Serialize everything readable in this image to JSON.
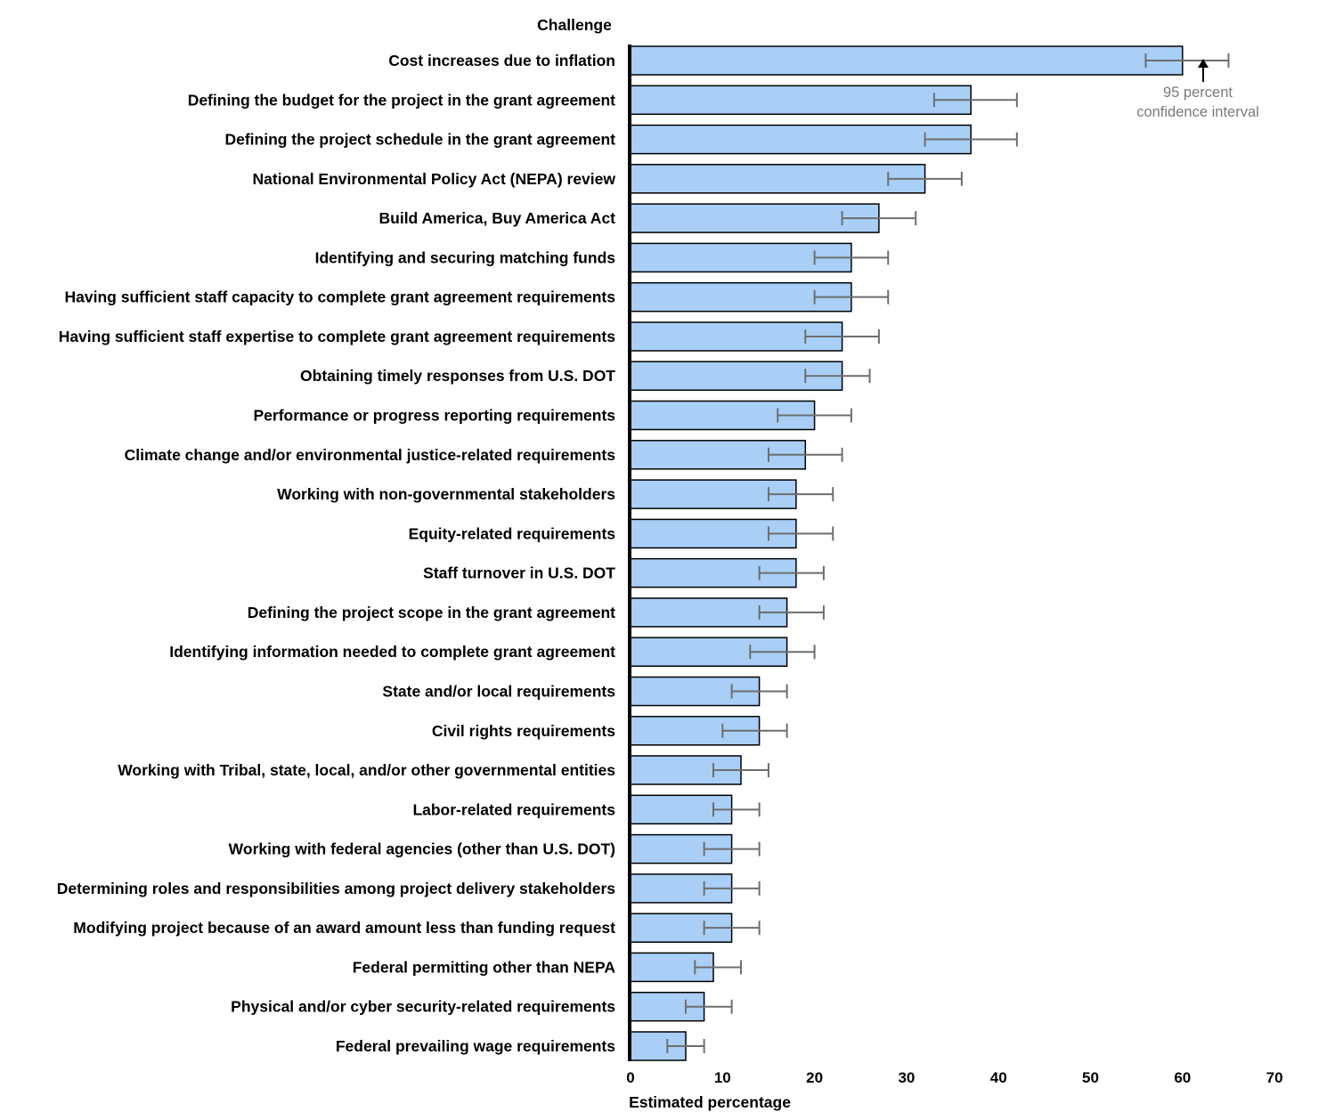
{
  "chart_data": {
    "type": "bar",
    "orientation": "horizontal",
    "title": "",
    "ylabel": "Challenge",
    "xlabel": "Estimated percentage",
    "xlim": [
      0,
      70
    ],
    "xticks": [
      "0",
      "10",
      "20",
      "30",
      "40",
      "50",
      "60",
      "70"
    ],
    "grid": false,
    "colors": {
      "bar_fill": "#a9cff7",
      "bar_stroke": "#000000",
      "error_bar": "#6e6e6e",
      "annotation": "#7a7a7a"
    },
    "series": [
      {
        "name": "Estimated percentage",
        "items": [
          {
            "label": "Cost increases due to inflation",
            "value": 60,
            "ci": [
              56,
              65
            ]
          },
          {
            "label": "Defining the budget for the project in the grant agreement",
            "value": 37,
            "ci": [
              33,
              42
            ]
          },
          {
            "label": "Defining the project schedule in the grant agreement",
            "value": 37,
            "ci": [
              32,
              42
            ]
          },
          {
            "label": "National Environmental Policy Act (NEPA) review",
            "value": 32,
            "ci": [
              28,
              36
            ]
          },
          {
            "label": "Build America, Buy America Act",
            "value": 27,
            "ci": [
              23,
              31
            ]
          },
          {
            "label": "Identifying and securing matching funds",
            "value": 24,
            "ci": [
              20,
              28
            ]
          },
          {
            "label": "Having sufficient staff capacity to complete grant agreement requirements",
            "value": 24,
            "ci": [
              20,
              28
            ]
          },
          {
            "label": "Having sufficient staff expertise to complete grant agreement requirements",
            "value": 23,
            "ci": [
              19,
              27
            ]
          },
          {
            "label": "Obtaining timely responses from U.S. DOT",
            "value": 23,
            "ci": [
              19,
              26
            ]
          },
          {
            "label": "Performance or progress reporting requirements",
            "value": 20,
            "ci": [
              16,
              24
            ]
          },
          {
            "label": "Climate change and/or environmental justice-related requirements",
            "value": 19,
            "ci": [
              15,
              23
            ]
          },
          {
            "label": "Working with non-governmental stakeholders",
            "value": 18,
            "ci": [
              15,
              22
            ]
          },
          {
            "label": "Equity-related requirements",
            "value": 18,
            "ci": [
              15,
              22
            ]
          },
          {
            "label": "Staff turnover in U.S. DOT",
            "value": 18,
            "ci": [
              14,
              21
            ]
          },
          {
            "label": "Defining the project scope in the grant agreement",
            "value": 17,
            "ci": [
              14,
              21
            ]
          },
          {
            "label": "Identifying information needed to complete grant agreement",
            "value": 17,
            "ci": [
              13,
              20
            ]
          },
          {
            "label": "State and/or local requirements",
            "value": 14,
            "ci": [
              11,
              17
            ]
          },
          {
            "label": "Civil rights requirements",
            "value": 14,
            "ci": [
              10,
              17
            ]
          },
          {
            "label": "Working with Tribal, state, local, and/or other governmental entities",
            "value": 12,
            "ci": [
              9,
              15
            ]
          },
          {
            "label": "Labor-related requirements",
            "value": 11,
            "ci": [
              9,
              14
            ]
          },
          {
            "label": "Working with federal agencies (other than U.S. DOT)",
            "value": 11,
            "ci": [
              8,
              14
            ]
          },
          {
            "label": "Determining roles and responsibilities among project delivery stakeholders",
            "value": 11,
            "ci": [
              8,
              14
            ]
          },
          {
            "label": "Modifying project because of an award amount less than funding request",
            "value": 11,
            "ci": [
              8,
              14
            ]
          },
          {
            "label": "Federal permitting other than NEPA",
            "value": 9,
            "ci": [
              7,
              12
            ]
          },
          {
            "label": "Physical and/or cyber security-related requirements",
            "value": 8,
            "ci": [
              6,
              11
            ]
          },
          {
            "label": "Federal prevailing wage requirements",
            "value": 6,
            "ci": [
              4,
              8
            ]
          }
        ]
      }
    ],
    "annotation": {
      "text_line1": "95 percent",
      "text_line2": "confidence interval",
      "points_to": "Cost increases due to inflation"
    }
  }
}
